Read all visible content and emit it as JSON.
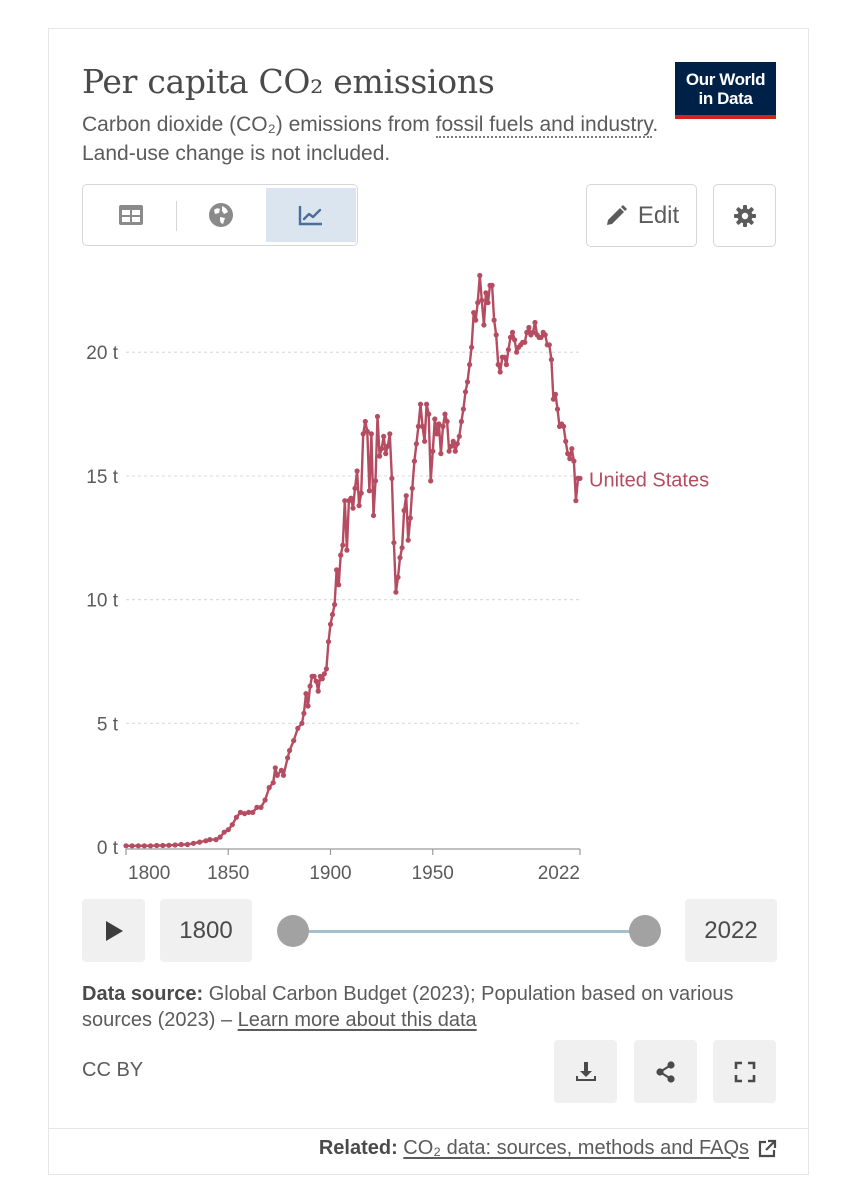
{
  "header": {
    "title": "Per capita CO₂ emissions",
    "subtitle_prefix": "Carbon dioxide (CO₂) emissions from ",
    "subtitle_link": "fossil fuels and industry",
    "subtitle_suffix": ". Land-use change is not included.",
    "logo_line1": "Our World",
    "logo_line2": "in Data"
  },
  "tabs": [
    {
      "icon": "table-icon",
      "active": false
    },
    {
      "icon": "globe-icon",
      "active": false
    },
    {
      "icon": "line-chart-icon",
      "active": true
    }
  ],
  "toolbar": {
    "edit_label": "Edit",
    "edit_icon": "pencil-icon",
    "settings_icon": "gear-icon"
  },
  "colors": {
    "series": "#b54c61",
    "grid": "#dddddd",
    "axis": "#5b5b5b",
    "logo_bg": "#002147",
    "logo_accent": "#ce261e",
    "active_tab": "#dbe5f0"
  },
  "chart_data": {
    "type": "line",
    "title": "Per capita CO₂ emissions",
    "xlim": [
      1800,
      2022
    ],
    "ylim": [
      0,
      23
    ],
    "grid": true,
    "y_ticks": [
      {
        "value": 0,
        "label": "0 t"
      },
      {
        "value": 5,
        "label": "5 t"
      },
      {
        "value": 10,
        "label": "10 t"
      },
      {
        "value": 15,
        "label": "15 t"
      },
      {
        "value": 20,
        "label": "20 t"
      }
    ],
    "x_ticks": [
      {
        "value": 1800,
        "label": "1800"
      },
      {
        "value": 1850,
        "label": "1850"
      },
      {
        "value": 1900,
        "label": "1900"
      },
      {
        "value": 1950,
        "label": "1950"
      },
      {
        "value": 2022,
        "label": "2022"
      }
    ],
    "series": [
      {
        "name": "United States",
        "color": "#b54c61",
        "points": [
          [
            1800,
            0.05
          ],
          [
            1803,
            0.05
          ],
          [
            1806,
            0.05
          ],
          [
            1809,
            0.05
          ],
          [
            1812,
            0.05
          ],
          [
            1815,
            0.06
          ],
          [
            1818,
            0.06
          ],
          [
            1821,
            0.07
          ],
          [
            1824,
            0.08
          ],
          [
            1827,
            0.1
          ],
          [
            1830,
            0.1
          ],
          [
            1833,
            0.15
          ],
          [
            1836,
            0.2
          ],
          [
            1839,
            0.25
          ],
          [
            1841,
            0.3
          ],
          [
            1844,
            0.3
          ],
          [
            1846,
            0.4
          ],
          [
            1848,
            0.6
          ],
          [
            1850,
            0.7
          ],
          [
            1852,
            0.9
          ],
          [
            1854,
            1.2
          ],
          [
            1856,
            1.4
          ],
          [
            1858,
            1.35
          ],
          [
            1860,
            1.4
          ],
          [
            1862,
            1.4
          ],
          [
            1864,
            1.6
          ],
          [
            1866,
            1.6
          ],
          [
            1868,
            1.9
          ],
          [
            1870,
            2.4
          ],
          [
            1872,
            2.6
          ],
          [
            1873,
            3.2
          ],
          [
            1874,
            2.9
          ],
          [
            1876,
            3.1
          ],
          [
            1877,
            2.9
          ],
          [
            1879,
            3.6
          ],
          [
            1880,
            3.9
          ],
          [
            1882,
            4.3
          ],
          [
            1884,
            4.8
          ],
          [
            1886,
            5.0
          ],
          [
            1887,
            5.4
          ],
          [
            1888,
            6.2
          ],
          [
            1889,
            5.7
          ],
          [
            1890,
            6.5
          ],
          [
            1891,
            6.9
          ],
          [
            1892,
            6.9
          ],
          [
            1893,
            6.7
          ],
          [
            1894,
            6.3
          ],
          [
            1895,
            6.9
          ],
          [
            1896,
            6.8
          ],
          [
            1897,
            7.0
          ],
          [
            1898,
            7.2
          ],
          [
            1899,
            8.3
          ],
          [
            1900,
            9.0
          ],
          [
            1901,
            9.4
          ],
          [
            1902,
            9.8
          ],
          [
            1903,
            11.2
          ],
          [
            1904,
            10.6
          ],
          [
            1905,
            11.8
          ],
          [
            1906,
            12.2
          ],
          [
            1907,
            14.0
          ],
          [
            1908,
            12.0
          ],
          [
            1909,
            14.0
          ],
          [
            1910,
            14.1
          ],
          [
            1911,
            13.7
          ],
          [
            1912,
            14.5
          ],
          [
            1913,
            15.2
          ],
          [
            1914,
            13.8
          ],
          [
            1915,
            14.3
          ],
          [
            1916,
            16.7
          ],
          [
            1917,
            17.2
          ],
          [
            1918,
            16.8
          ],
          [
            1919,
            14.4
          ],
          [
            1920,
            16.7
          ],
          [
            1921,
            13.4
          ],
          [
            1922,
            14.8
          ],
          [
            1923,
            17.4
          ],
          [
            1924,
            15.8
          ],
          [
            1925,
            16.1
          ],
          [
            1926,
            16.6
          ],
          [
            1927,
            15.9
          ],
          [
            1928,
            16.2
          ],
          [
            1929,
            16.7
          ],
          [
            1930,
            14.9
          ],
          [
            1931,
            12.3
          ],
          [
            1932,
            10.3
          ],
          [
            1933,
            10.9
          ],
          [
            1934,
            11.7
          ],
          [
            1935,
            12.1
          ],
          [
            1936,
            13.6
          ],
          [
            1937,
            14.2
          ],
          [
            1938,
            12.4
          ],
          [
            1939,
            13.3
          ],
          [
            1940,
            14.5
          ],
          [
            1941,
            15.6
          ],
          [
            1942,
            16.3
          ],
          [
            1943,
            17.0
          ],
          [
            1944,
            17.9
          ],
          [
            1945,
            17.0
          ],
          [
            1946,
            16.4
          ],
          [
            1947,
            17.9
          ],
          [
            1948,
            17.5
          ],
          [
            1949,
            14.8
          ],
          [
            1950,
            16.0
          ],
          [
            1951,
            17.3
          ],
          [
            1952,
            16.7
          ],
          [
            1953,
            17.1
          ],
          [
            1954,
            15.9
          ],
          [
            1955,
            17.0
          ],
          [
            1956,
            17.5
          ],
          [
            1957,
            17.2
          ],
          [
            1958,
            16.0
          ],
          [
            1959,
            16.2
          ],
          [
            1960,
            16.4
          ],
          [
            1961,
            16.0
          ],
          [
            1962,
            16.3
          ],
          [
            1963,
            16.6
          ],
          [
            1964,
            17.2
          ],
          [
            1965,
            17.7
          ],
          [
            1966,
            18.4
          ],
          [
            1967,
            18.8
          ],
          [
            1968,
            19.5
          ],
          [
            1969,
            20.2
          ],
          [
            1970,
            21.6
          ],
          [
            1971,
            21.3
          ],
          [
            1972,
            22.0
          ],
          [
            1973,
            23.1
          ],
          [
            1974,
            22.1
          ],
          [
            1975,
            21.1
          ],
          [
            1976,
            22.4
          ],
          [
            1977,
            22.0
          ],
          [
            1978,
            22.7
          ],
          [
            1979,
            22.7
          ],
          [
            1980,
            21.3
          ],
          [
            1981,
            20.7
          ],
          [
            1982,
            19.5
          ],
          [
            1983,
            19.2
          ],
          [
            1984,
            19.8
          ],
          [
            1985,
            19.8
          ],
          [
            1986,
            19.5
          ],
          [
            1987,
            20.1
          ],
          [
            1988,
            20.6
          ],
          [
            1989,
            20.8
          ],
          [
            1990,
            20.5
          ],
          [
            1991,
            20.0
          ],
          [
            1992,
            20.2
          ],
          [
            1993,
            20.3
          ],
          [
            1994,
            20.4
          ],
          [
            1995,
            20.4
          ],
          [
            1996,
            20.8
          ],
          [
            1997,
            21.0
          ],
          [
            1998,
            20.7
          ],
          [
            1999,
            20.8
          ],
          [
            2000,
            21.2
          ],
          [
            2001,
            20.7
          ],
          [
            2002,
            20.6
          ],
          [
            2003,
            20.6
          ],
          [
            2004,
            20.8
          ],
          [
            2005,
            20.7
          ],
          [
            2006,
            20.3
          ],
          [
            2007,
            20.3
          ],
          [
            2008,
            19.7
          ],
          [
            2009,
            18.1
          ],
          [
            2010,
            18.3
          ],
          [
            2011,
            17.7
          ],
          [
            2012,
            17.0
          ],
          [
            2013,
            17.1
          ],
          [
            2014,
            17.0
          ],
          [
            2015,
            16.4
          ],
          [
            2016,
            15.9
          ],
          [
            2017,
            15.7
          ],
          [
            2018,
            16.1
          ],
          [
            2019,
            15.6
          ],
          [
            2020,
            14.0
          ],
          [
            2021,
            14.9
          ],
          [
            2022,
            14.9
          ]
        ]
      }
    ]
  },
  "timeline": {
    "play_icon": "play-icon",
    "start_year": "1800",
    "end_year": "2022",
    "start_value": 1800,
    "end_value": 2022
  },
  "footer": {
    "source_label": "Data source:",
    "source_text": " Global Carbon Budget (2023); Population based on various sources (2023) – ",
    "source_link": "Learn more about this data",
    "license": "CC BY",
    "buttons": [
      "download-icon",
      "share-icon",
      "fullscreen-icon"
    ],
    "related_label": "Related:",
    "related_link": "CO₂ data: sources, methods and FAQs",
    "related_icon": "external-link-icon"
  }
}
